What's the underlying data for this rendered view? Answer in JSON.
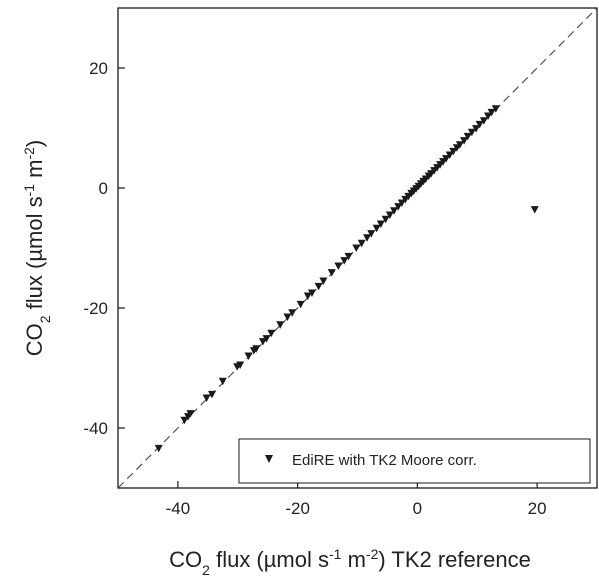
{
  "chart_data": {
    "type": "scatter",
    "xlabel": {
      "parts": [
        {
          "text": "CO",
          "shift": "base"
        },
        {
          "text": "2",
          "shift": "sub"
        },
        {
          "text": " flux (µmol s",
          "shift": "base"
        },
        {
          "text": "-1",
          "shift": "super"
        },
        {
          "text": " m",
          "shift": "base"
        },
        {
          "text": "-2",
          "shift": "super"
        },
        {
          "text": ") TK2 reference",
          "shift": "base"
        }
      ]
    },
    "ylabel": {
      "parts": [
        {
          "text": "CO",
          "shift": "base"
        },
        {
          "text": "2",
          "shift": "sub"
        },
        {
          "text": " flux (µmol s",
          "shift": "base"
        },
        {
          "text": "-1",
          "shift": "super"
        },
        {
          "text": " m",
          "shift": "base"
        },
        {
          "text": "-2",
          "shift": "super"
        },
        {
          "text": ")",
          "shift": "base"
        }
      ]
    },
    "xlim": [
      -50,
      30
    ],
    "ylim": [
      -50,
      30
    ],
    "xticks": [
      -40,
      -20,
      0,
      20
    ],
    "yticks": [
      -40,
      -20,
      0,
      20
    ],
    "grid": false,
    "reference_line": {
      "type": "1:1",
      "style": "dashed",
      "color": "#444444"
    },
    "legend": {
      "position": "bottom-right",
      "boxed": true
    },
    "marker": {
      "shape": "triangle-down",
      "color": "#1a1a1a"
    },
    "series": [
      {
        "name": "EdiRE with TK2 Moore corr.",
        "points": [
          [
            -43.2,
            -43.4
          ],
          [
            -38.9,
            -38.7
          ],
          [
            -38.3,
            -38.1
          ],
          [
            -37.9,
            -37.6
          ],
          [
            -35.2,
            -35.0
          ],
          [
            -34.3,
            -34.4
          ],
          [
            -32.5,
            -32.2
          ],
          [
            -30.1,
            -29.8
          ],
          [
            -29.6,
            -29.5
          ],
          [
            -28.2,
            -28.0
          ],
          [
            -27.3,
            -27.1
          ],
          [
            -26.9,
            -26.8
          ],
          [
            -25.8,
            -25.6
          ],
          [
            -25.2,
            -25.1
          ],
          [
            -24.4,
            -24.2
          ],
          [
            -22.9,
            -22.8
          ],
          [
            -21.7,
            -21.5
          ],
          [
            -20.9,
            -20.8
          ],
          [
            -19.5,
            -19.4
          ],
          [
            -18.3,
            -18.0
          ],
          [
            -17.6,
            -17.5
          ],
          [
            -16.5,
            -16.4
          ],
          [
            -15.7,
            -15.5
          ],
          [
            -14.3,
            -14.1
          ],
          [
            -13.2,
            -13.0
          ],
          [
            -12.2,
            -12.1
          ],
          [
            -11.5,
            -11.4
          ],
          [
            -10.2,
            -10.0
          ],
          [
            -9.3,
            -9.2
          ],
          [
            -8.4,
            -8.3
          ],
          [
            -7.7,
            -7.6
          ],
          [
            -6.8,
            -6.7
          ],
          [
            -6.1,
            -6.0
          ],
          [
            -5.3,
            -5.2
          ],
          [
            -4.6,
            -4.5
          ],
          [
            -3.9,
            -3.8
          ],
          [
            -3.2,
            -3.1
          ],
          [
            -2.6,
            -2.5
          ],
          [
            -2.0,
            -1.9
          ],
          [
            -1.5,
            -1.4
          ],
          [
            -1.0,
            -0.9
          ],
          [
            -0.6,
            -0.5
          ],
          [
            -0.2,
            -0.1
          ],
          [
            0.2,
            0.3
          ],
          [
            0.6,
            0.7
          ],
          [
            1.0,
            1.1
          ],
          [
            1.4,
            1.5
          ],
          [
            1.9,
            2.0
          ],
          [
            2.3,
            2.4
          ],
          [
            2.8,
            2.9
          ],
          [
            3.3,
            3.4
          ],
          [
            3.8,
            3.9
          ],
          [
            4.3,
            4.4
          ],
          [
            4.8,
            4.9
          ],
          [
            5.4,
            5.5
          ],
          [
            6.0,
            6.1
          ],
          [
            6.6,
            6.7
          ],
          [
            7.1,
            7.2
          ],
          [
            7.8,
            7.9
          ],
          [
            8.4,
            8.6
          ],
          [
            9.1,
            9.3
          ],
          [
            9.8,
            9.9
          ],
          [
            10.4,
            10.6
          ],
          [
            11.1,
            11.2
          ],
          [
            11.8,
            12.0
          ],
          [
            12.4,
            12.6
          ],
          [
            13.1,
            13.2
          ],
          [
            19.6,
            -3.6
          ]
        ]
      }
    ]
  }
}
